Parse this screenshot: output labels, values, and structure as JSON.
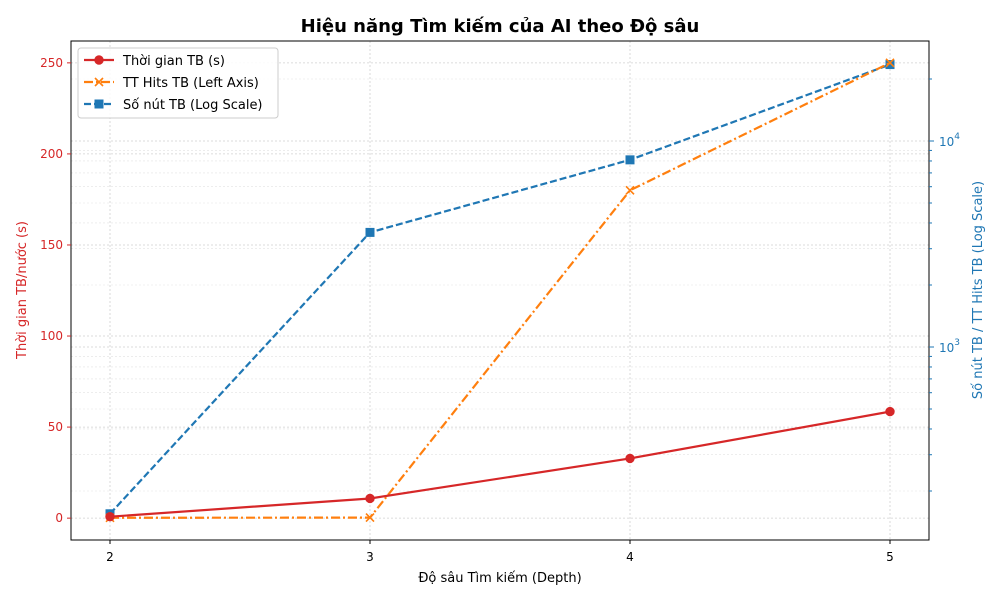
{
  "chart_data": {
    "type": "line",
    "title": "Hiệu năng Tìm kiếm của AI theo Độ sâu",
    "xlabel": "Độ sâu Tìm kiếm (Depth)",
    "ylabel_left": "Thời gian TB/nước (s)",
    "ylabel_right": "Số nút TB / TT Hits TB (Log Scale)",
    "x": [
      2,
      3,
      4,
      5
    ],
    "x_ticks": [
      "2",
      "3",
      "4",
      "5"
    ],
    "ylim_left": [
      -12,
      262
    ],
    "y_ticks_left": [
      "0",
      "50",
      "100",
      "150",
      "200",
      "250"
    ],
    "y_right_scale": "log",
    "y_ticks_right": [
      {
        "base": "10",
        "exp": "3"
      },
      {
        "base": "10",
        "exp": "4"
      }
    ],
    "grid": true,
    "legend_position": "top-left",
    "series": [
      {
        "name": "Thời gian TB (s)",
        "axis": "left",
        "values": [
          0.8,
          10.8,
          32.8,
          58.5
        ],
        "color": "#d62728",
        "marker": "circle",
        "dash": "solid"
      },
      {
        "name": "TT Hits TB (Left Axis)",
        "axis": "left",
        "values": [
          0.2,
          0.3,
          180,
          250
        ],
        "color": "#ff7f0e",
        "marker": "x",
        "dash": "dashdot"
      },
      {
        "name": "Số nút TB (Log Scale)",
        "axis": "right",
        "values": [
          155,
          3600,
          8100,
          23500
        ],
        "color": "#1f77b4",
        "marker": "square",
        "dash": "dashed"
      }
    ]
  }
}
